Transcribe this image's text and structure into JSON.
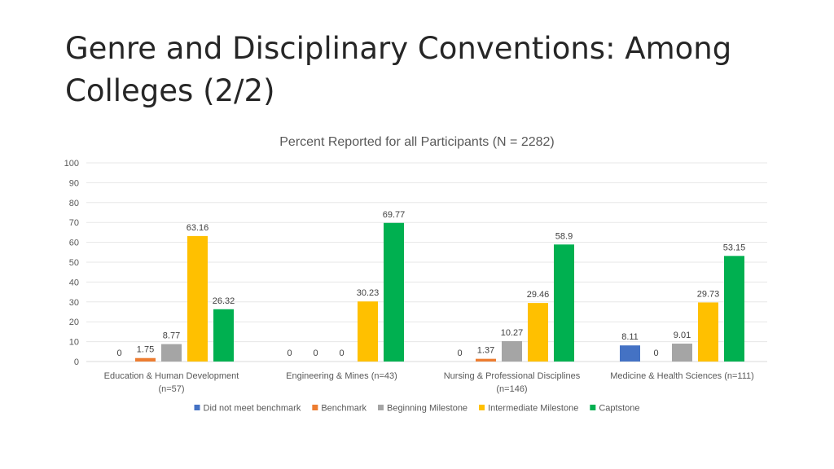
{
  "slide": {
    "title": "Genre and Disciplinary Conventions: Among Colleges (2/2)"
  },
  "chart_data": {
    "type": "bar",
    "title": "Percent Reported for all Participants (N = 2282)",
    "xlabel": "",
    "ylabel": "",
    "ylim": [
      0,
      100
    ],
    "yticks": [
      0,
      10,
      20,
      30,
      40,
      50,
      60,
      70,
      80,
      90,
      100
    ],
    "grid": true,
    "legend_position": "bottom",
    "categories": [
      [
        "Education & Human Development",
        "(n=57)"
      ],
      [
        "Engineering & Mines (n=43)"
      ],
      [
        "Nursing & Professional Disciplines",
        "(n=146)"
      ],
      [
        "Medicine & Health Sciences (n=111)"
      ]
    ],
    "series": [
      {
        "name": "Did not meet benchmark",
        "color": "#4472C4",
        "values": [
          0,
          0,
          0,
          8.11
        ]
      },
      {
        "name": "Benchmark",
        "color": "#ED7D31",
        "values": [
          1.75,
          0,
          1.37,
          0
        ]
      },
      {
        "name": "Beginning Milestone",
        "color": "#A5A5A5",
        "values": [
          8.77,
          0,
          10.27,
          9.01
        ]
      },
      {
        "name": "Intermediate Milestone",
        "color": "#FFC000",
        "values": [
          63.16,
          30.23,
          29.46,
          29.73
        ]
      },
      {
        "name": "Captstone",
        "color": "#00B050",
        "values": [
          26.32,
          69.77,
          58.9,
          53.15
        ]
      }
    ]
  }
}
